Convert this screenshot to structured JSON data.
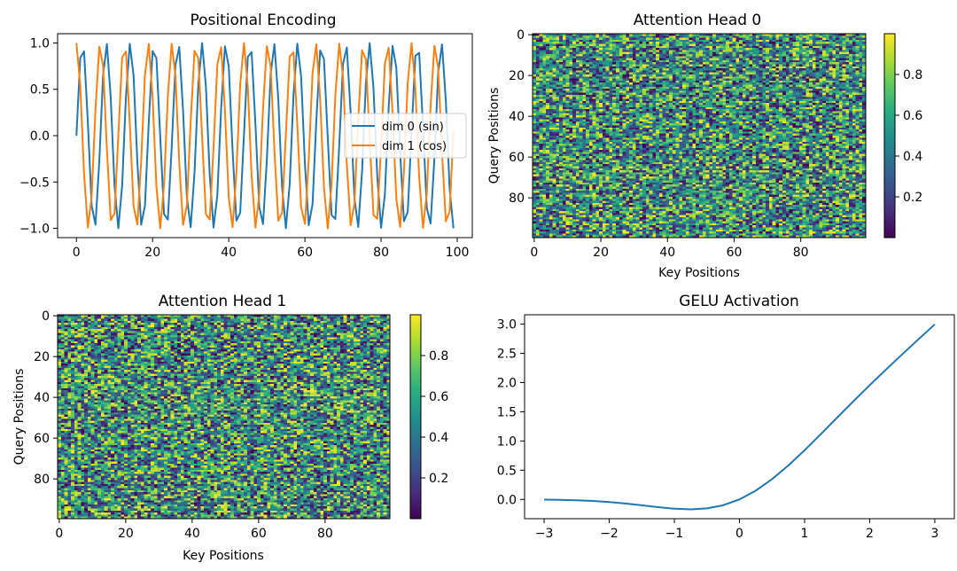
{
  "figure": {
    "background": "#ffffff"
  },
  "chart_data": [
    {
      "id": "pe",
      "type": "line",
      "title": "Positional Encoding",
      "xlabel": "",
      "ylabel": "",
      "xlim": [
        -4.95,
        103.95
      ],
      "ylim": [
        -1.1,
        1.1
      ],
      "xticks": [
        0,
        20,
        40,
        60,
        80,
        100
      ],
      "xtick_labels": [
        "0",
        "20",
        "40",
        "60",
        "80",
        "100"
      ],
      "yticks": [
        -1.0,
        -0.5,
        0.0,
        0.5,
        1.0
      ],
      "ytick_labels": [
        "−1.0",
        "−0.5",
        "0.0",
        "0.5",
        "1.0"
      ],
      "grid": false,
      "legend_position": "center-right",
      "x": [
        0,
        1,
        2,
        3,
        4,
        5,
        6,
        7,
        8,
        9,
        10,
        11,
        12,
        13,
        14,
        15,
        16,
        17,
        18,
        19,
        20,
        21,
        22,
        23,
        24,
        25,
        26,
        27,
        28,
        29,
        30,
        31,
        32,
        33,
        34,
        35,
        36,
        37,
        38,
        39,
        40,
        41,
        42,
        43,
        44,
        45,
        46,
        47,
        48,
        49,
        50,
        51,
        52,
        53,
        54,
        55,
        56,
        57,
        58,
        59,
        60,
        61,
        62,
        63,
        64,
        65,
        66,
        67,
        68,
        69,
        70,
        71,
        72,
        73,
        74,
        75,
        76,
        77,
        78,
        79,
        80,
        81,
        82,
        83,
        84,
        85,
        86,
        87,
        88,
        89,
        90,
        91,
        92,
        93,
        94,
        95,
        96,
        97,
        98,
        99
      ],
      "series": [
        {
          "name": "dim 0 (sin)",
          "color": "#1f77b4",
          "values": [
            0.0,
            0.841,
            0.909,
            0.141,
            -0.757,
            -0.959,
            -0.279,
            0.657,
            0.989,
            0.412,
            -0.544,
            -1.0,
            -0.537,
            0.42,
            0.991,
            0.65,
            -0.288,
            -0.961,
            -0.751,
            0.15,
            0.913,
            0.837,
            -0.009,
            -0.846,
            -0.906,
            -0.132,
            0.763,
            0.956,
            0.271,
            -0.664,
            -0.988,
            -0.404,
            0.551,
            1.0,
            0.529,
            -0.428,
            -0.992,
            -0.644,
            0.296,
            0.964,
            0.745,
            -0.159,
            -0.917,
            -0.832,
            0.018,
            0.851,
            0.902,
            0.124,
            -0.768,
            -0.954,
            -0.262,
            0.67,
            0.987,
            0.396,
            -0.559,
            -1.0,
            -0.522,
            0.436,
            0.993,
            0.637,
            -0.305,
            -0.966,
            -0.739,
            0.167,
            0.92,
            0.827,
            -0.027,
            -0.856,
            -0.898,
            -0.115,
            0.774,
            0.951,
            0.254,
            -0.677,
            -0.985,
            -0.388,
            0.566,
            0.999,
            0.514,
            -0.444,
            -0.994,
            -0.63,
            0.313,
            0.968,
            0.733,
            -0.176,
            -0.923,
            -0.822,
            0.035,
            0.86,
            0.894,
            0.106,
            -0.779,
            -0.948,
            -0.245,
            0.683,
            0.984,
            0.38,
            -0.573,
            -0.999
          ]
        },
        {
          "name": "dim 1 (cos)",
          "color": "#ff7f0e",
          "values": [
            1.0,
            0.54,
            -0.416,
            -0.99,
            -0.654,
            0.284,
            0.96,
            0.754,
            -0.146,
            -0.911,
            -0.839,
            0.004,
            0.844,
            0.907,
            0.137,
            -0.76,
            -0.958,
            -0.275,
            0.66,
            0.989,
            0.408,
            -0.548,
            -1.0,
            -0.533,
            0.424,
            0.991,
            0.647,
            -0.292,
            -0.963,
            -0.748,
            0.154,
            0.915,
            0.834,
            -0.013,
            -0.849,
            -0.904,
            -0.128,
            0.766,
            0.955,
            0.267,
            -0.667,
            -0.987,
            -0.4,
            0.555,
            1.0,
            0.525,
            -0.432,
            -0.992,
            -0.64,
            0.3,
            0.965,
            0.742,
            -0.163,
            -0.918,
            -0.83,
            0.022,
            0.853,
            0.9,
            0.119,
            -0.771,
            -0.952,
            -0.258,
            0.674,
            0.986,
            0.392,
            -0.562,
            -1.0,
            -0.518,
            0.44,
            0.994,
            0.633,
            -0.309,
            -0.967,
            -0.736,
            0.172,
            0.922,
            0.825,
            -0.031,
            -0.858,
            -0.896,
            -0.11,
            0.777,
            0.949,
            0.25,
            -0.68,
            -0.984,
            -0.384,
            0.57,
            0.999,
            0.51,
            -0.448,
            -0.995,
            -0.626,
            0.317,
            0.969,
            0.73,
            -0.18,
            -0.925,
            -0.819,
            0.04
          ]
        }
      ]
    },
    {
      "id": "head0",
      "type": "heatmap",
      "title": "Attention Head 0",
      "xlabel": "Key Positions",
      "ylabel": "Query Positions",
      "rows": 100,
      "cols": 100,
      "value_range": [
        0.0,
        1.0
      ],
      "random_seed": 7,
      "colormap": "viridis",
      "xticks": [
        0,
        20,
        40,
        60,
        80
      ],
      "xtick_labels": [
        "0",
        "20",
        "40",
        "60",
        "80"
      ],
      "yticks": [
        0,
        20,
        40,
        60,
        80
      ],
      "ytick_labels": [
        "0",
        "20",
        "40",
        "60",
        "80"
      ],
      "colorbar_ticks": [
        0.2,
        0.4,
        0.6,
        0.8
      ],
      "colorbar_tick_labels": [
        "0.2",
        "0.4",
        "0.6",
        "0.8"
      ]
    },
    {
      "id": "head1",
      "type": "heatmap",
      "title": "Attention Head 1",
      "xlabel": "Key Positions",
      "ylabel": "Query Positions",
      "rows": 100,
      "cols": 100,
      "value_range": [
        0.0,
        1.0
      ],
      "random_seed": 23,
      "colormap": "viridis",
      "xticks": [
        0,
        20,
        40,
        60,
        80
      ],
      "xtick_labels": [
        "0",
        "20",
        "40",
        "60",
        "80"
      ],
      "yticks": [
        0,
        20,
        40,
        60,
        80
      ],
      "ytick_labels": [
        "0",
        "20",
        "40",
        "60",
        "80"
      ],
      "colorbar_ticks": [
        0.2,
        0.4,
        0.6,
        0.8
      ],
      "colorbar_tick_labels": [
        "0.2",
        "0.4",
        "0.6",
        "0.8"
      ]
    },
    {
      "id": "gelu",
      "type": "line",
      "title": "GELU Activation",
      "xlabel": "",
      "ylabel": "",
      "xlim": [
        -3.3,
        3.3
      ],
      "ylim": [
        -0.33,
        3.16
      ],
      "xticks": [
        -3,
        -2,
        -1,
        0,
        1,
        2,
        3
      ],
      "xtick_labels": [
        "−3",
        "−2",
        "−1",
        "0",
        "1",
        "2",
        "3"
      ],
      "yticks": [
        0.0,
        0.5,
        1.0,
        1.5,
        2.0,
        2.5,
        3.0
      ],
      "ytick_labels": [
        "0.0",
        "0.5",
        "1.0",
        "1.5",
        "2.0",
        "2.5",
        "3.0"
      ],
      "grid": false,
      "x": [
        -3.0,
        -2.75,
        -2.5,
        -2.25,
        -2.0,
        -1.75,
        -1.5,
        -1.25,
        -1.0,
        -0.75,
        -0.5,
        -0.25,
        0.0,
        0.25,
        0.5,
        0.75,
        1.0,
        1.25,
        1.5,
        1.75,
        2.0,
        2.25,
        2.5,
        2.75,
        3.0
      ],
      "series": [
        {
          "name": "GELU",
          "color": "#1f77b4",
          "values": [
            -0.004,
            -0.008,
            -0.016,
            -0.027,
            -0.045,
            -0.07,
            -0.1,
            -0.132,
            -0.159,
            -0.17,
            -0.154,
            -0.1,
            0.0,
            0.15,
            0.346,
            0.58,
            0.841,
            1.118,
            1.4,
            1.68,
            1.955,
            2.222,
            2.484,
            2.742,
            2.996
          ]
        }
      ]
    }
  ]
}
